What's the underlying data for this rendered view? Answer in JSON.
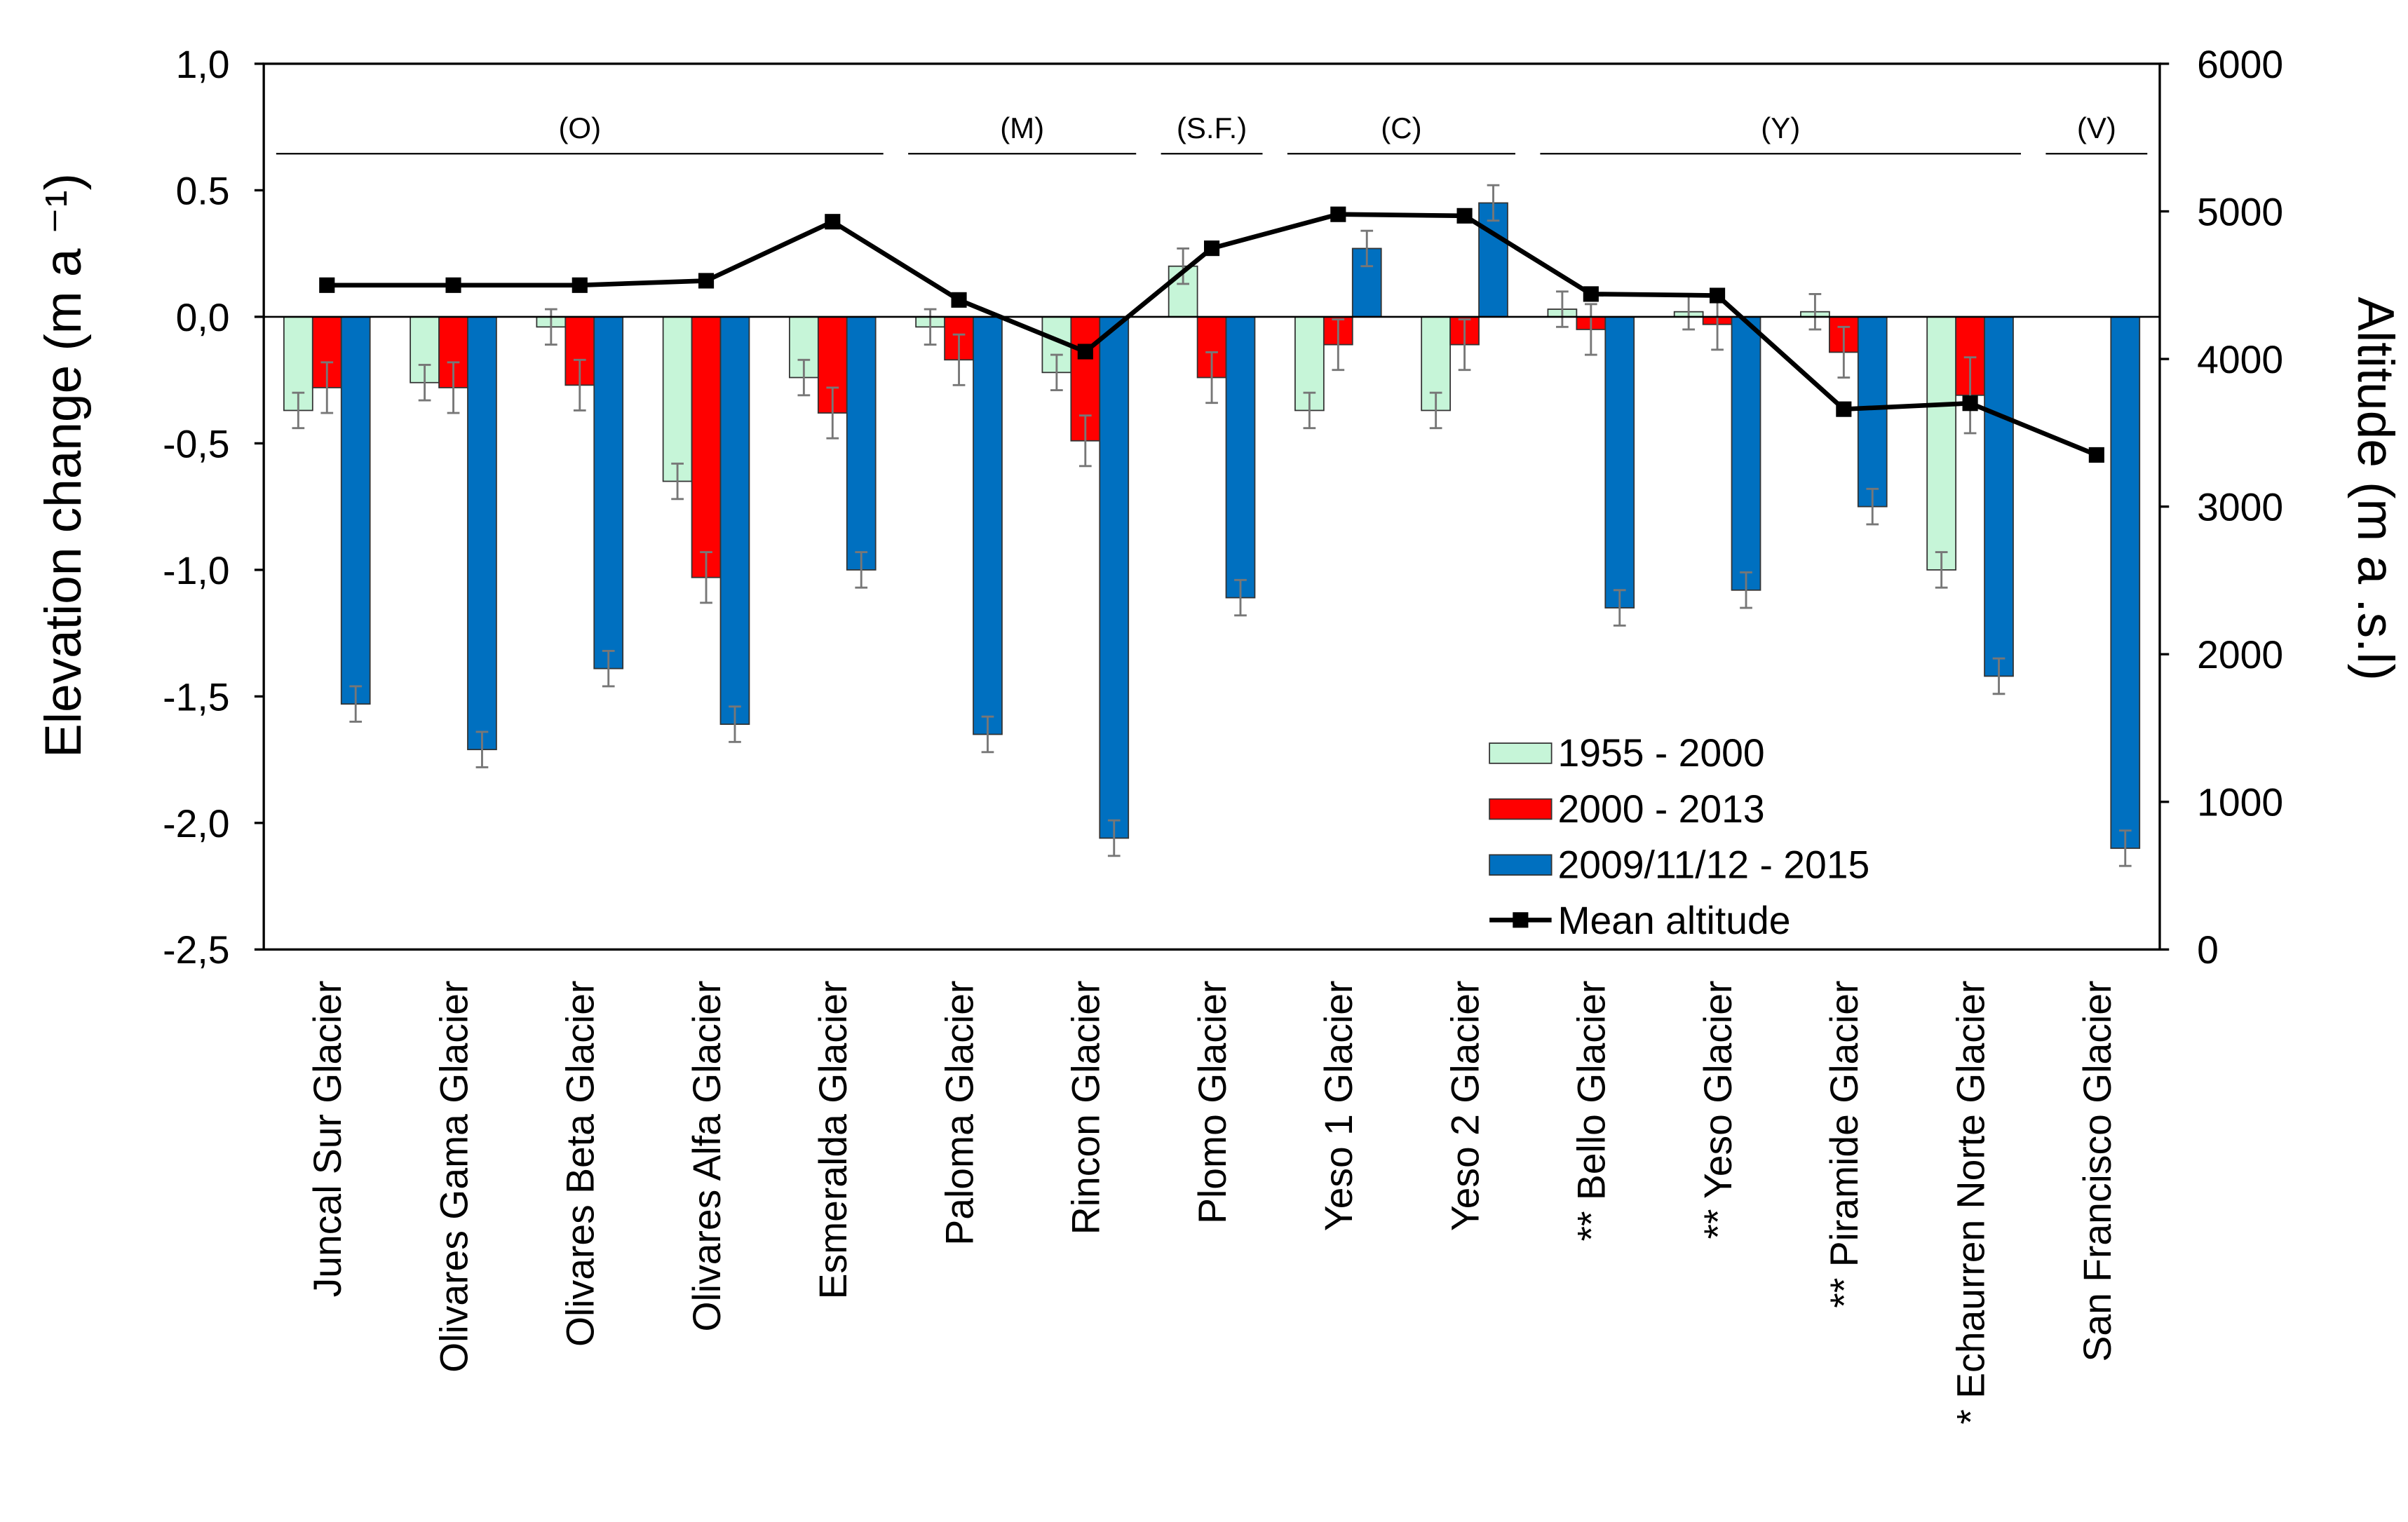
{
  "chart_data": {
    "type": "bar",
    "y_label": "Elevation change (m a ⁻¹)",
    "y2_label": "Altitude (m a .s.l)",
    "categories": [
      "Juncal Sur Glacier",
      "Olivares Gama Glacier",
      "Olivares Beta Glacier",
      "Olivares Alfa Glacier",
      "Esmeralda Glacier",
      "Paloma Glacier",
      "Rincon Glacier",
      "Plomo Glacier",
      "Yeso 1 Glacier",
      "Yeso 2 Glacier",
      "** Bello Glacier",
      "** Yeso Glacier",
      "** Piramide Glacier",
      "* Echaurren Norte Glacier",
      "San Francisco Glacier"
    ],
    "groups": [
      {
        "label": "(O)",
        "from": 0,
        "to": 4
      },
      {
        "label": "(M)",
        "from": 5,
        "to": 6
      },
      {
        "label": "(S.F.)",
        "from": 7,
        "to": 7
      },
      {
        "label": "(C)",
        "from": 8,
        "to": 9
      },
      {
        "label": "(Y)",
        "from": 10,
        "to": 13
      },
      {
        "label": "(V)",
        "from": 14,
        "to": 14
      }
    ],
    "series": [
      {
        "name": "1955 - 2000",
        "color": "#c6f5d8",
        "values": [
          -0.37,
          -0.26,
          -0.04,
          -0.65,
          -0.24,
          -0.04,
          -0.22,
          0.2,
          -0.37,
          -0.37,
          0.03,
          0.02,
          0.02,
          -1.0,
          null
        ],
        "errors": [
          0.07,
          0.07,
          0.07,
          0.07,
          0.07,
          0.07,
          0.07,
          0.07,
          0.07,
          0.07,
          0.07,
          0.07,
          0.07,
          0.07,
          null
        ]
      },
      {
        "name": "2000 - 2013",
        "color": "#ff0000",
        "values": [
          -0.28,
          -0.28,
          -0.27,
          -1.03,
          -0.38,
          -0.17,
          -0.49,
          -0.24,
          -0.11,
          -0.11,
          -0.05,
          -0.03,
          -0.14,
          -0.31,
          null
        ],
        "errors": [
          0.1,
          0.1,
          0.1,
          0.1,
          0.1,
          0.1,
          0.1,
          0.1,
          0.1,
          0.1,
          0.1,
          0.1,
          0.1,
          0.15,
          null
        ]
      },
      {
        "name": "2009/11/12 - 2015",
        "color": "#0070c0",
        "values": [
          -1.53,
          -1.71,
          -1.39,
          -1.61,
          -1.0,
          -1.65,
          -2.06,
          -1.11,
          0.27,
          0.45,
          -1.15,
          -1.08,
          -0.75,
          -1.42,
          -2.1
        ],
        "errors": [
          0.07,
          0.07,
          0.07,
          0.07,
          0.07,
          0.07,
          0.07,
          0.07,
          0.07,
          0.07,
          0.07,
          0.07,
          0.07,
          0.07,
          0.07
        ]
      },
      {
        "name": "Mean altitude",
        "type": "line",
        "axis": "y2",
        "color": "#000000",
        "values": [
          4500,
          4500,
          4500,
          4530,
          4930,
          4400,
          4050,
          4750,
          4980,
          4970,
          4440,
          4430,
          3660,
          3700,
          3350
        ]
      }
    ],
    "ylim": [
      -2.5,
      1.0
    ],
    "yticks": [
      {
        "value": -2.5,
        "label": "-2,5"
      },
      {
        "value": -2.0,
        "label": "-2,0"
      },
      {
        "value": -1.5,
        "label": "-1,5"
      },
      {
        "value": -1.0,
        "label": "-1,0"
      },
      {
        "value": -0.5,
        "label": "-0,5"
      },
      {
        "value": 0.0,
        "label": "0,0"
      },
      {
        "value": 0.5,
        "label": "0.5"
      },
      {
        "value": 1.0,
        "label": "1,0"
      }
    ],
    "y2lim": [
      0,
      6000
    ],
    "y2ticks": [
      0,
      1000,
      2000,
      3000,
      4000,
      5000,
      6000
    ]
  }
}
